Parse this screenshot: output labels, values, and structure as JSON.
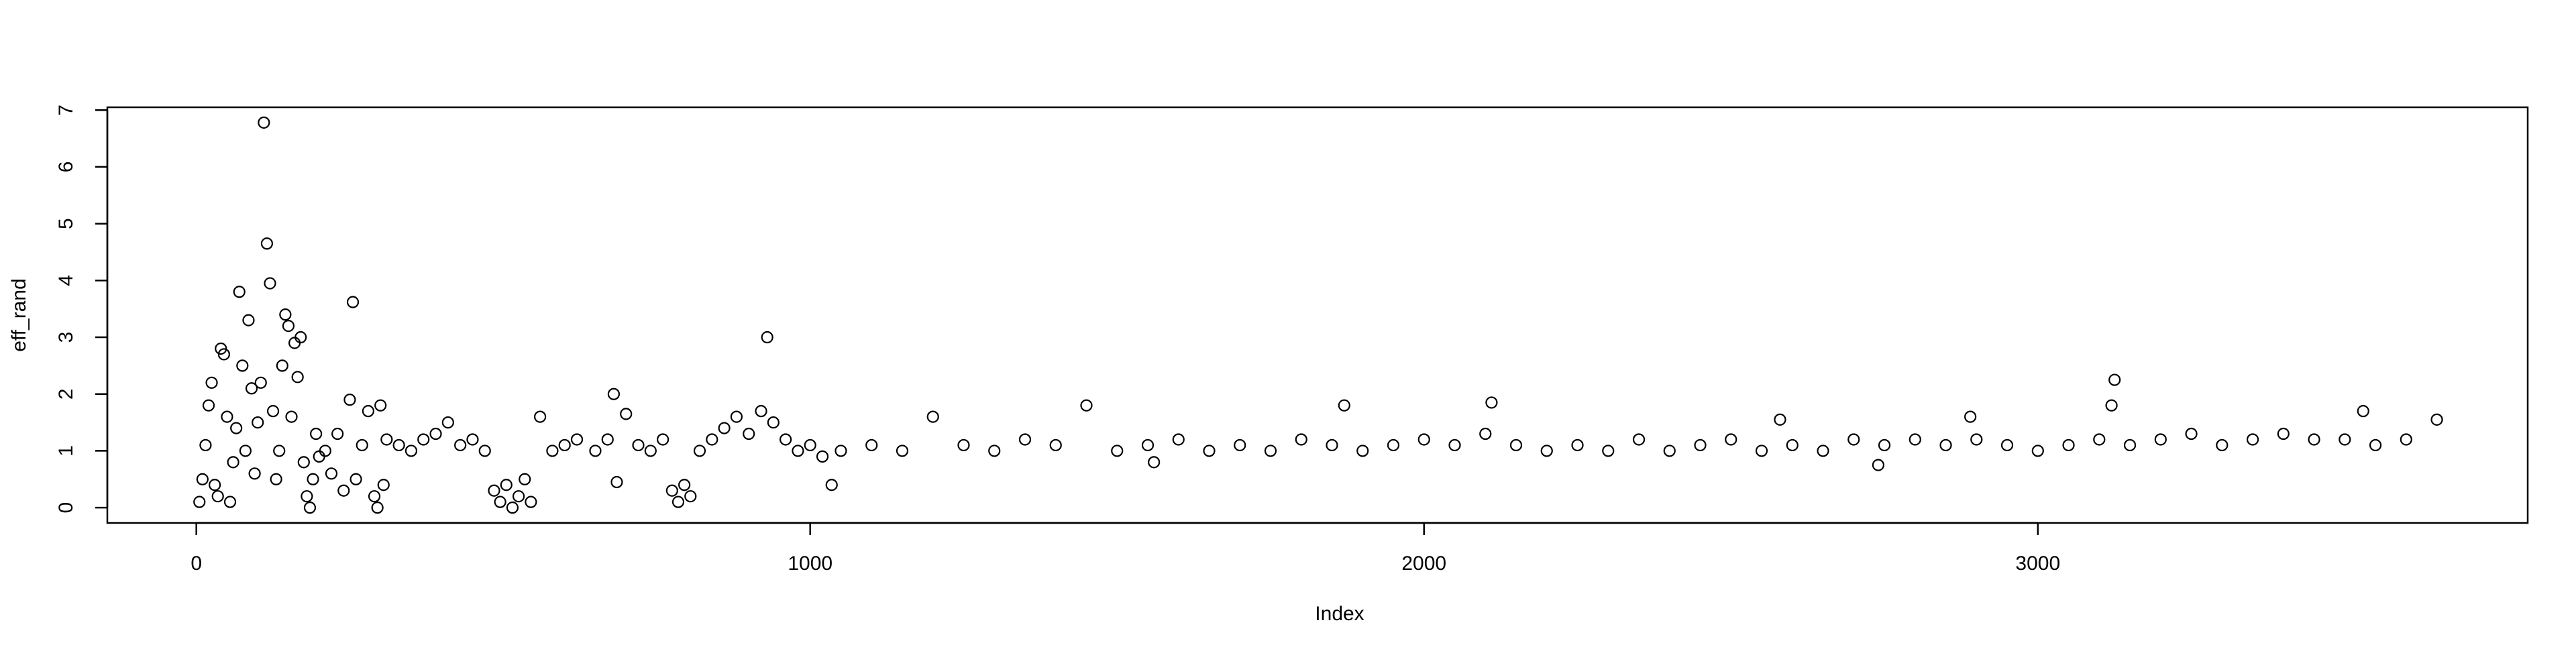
{
  "chart_data": {
    "type": "scatter",
    "x_label": "Index",
    "y_label": "eff_rand",
    "xlim": [
      -145,
      3798
    ],
    "ylim": [
      -0.27,
      7.05
    ],
    "xticks": [
      0,
      1000,
      2000,
      3000
    ],
    "yticks": [
      0,
      1,
      2,
      3,
      4,
      5,
      6,
      7
    ],
    "color": "#000000",
    "x": [
      5,
      10,
      15,
      20,
      25,
      30,
      35,
      40,
      45,
      50,
      55,
      60,
      65,
      70,
      75,
      80,
      85,
      90,
      95,
      100,
      105,
      110,
      115,
      120,
      125,
      130,
      135,
      140,
      145,
      150,
      155,
      160,
      165,
      170,
      175,
      180,
      185,
      190,
      195,
      200,
      210,
      220,
      230,
      240,
      250,
      255,
      260,
      270,
      280,
      290,
      295,
      300,
      305,
      310,
      330,
      350,
      370,
      390,
      410,
      430,
      450,
      470,
      485,
      495,
      505,
      515,
      525,
      535,
      545,
      560,
      580,
      600,
      620,
      650,
      670,
      680,
      685,
      700,
      720,
      740,
      760,
      775,
      785,
      795,
      805,
      820,
      840,
      860,
      880,
      900,
      920,
      930,
      940,
      960,
      980,
      1000,
      1020,
      1035,
      1050,
      1100,
      1150,
      1200,
      1250,
      1300,
      1350,
      1400,
      1450,
      1500,
      1550,
      1560,
      1600,
      1650,
      1700,
      1750,
      1800,
      1850,
      1870,
      1900,
      1950,
      2000,
      2050,
      2100,
      2110,
      2150,
      2200,
      2250,
      2300,
      2350,
      2400,
      2450,
      2500,
      2550,
      2580,
      2600,
      2650,
      2700,
      2740,
      2750,
      2800,
      2850,
      2890,
      2900,
      2950,
      3000,
      3050,
      3100,
      3120,
      3125,
      3150,
      3200,
      3250,
      3300,
      3350,
      3400,
      3450,
      3500,
      3530,
      3550,
      3600,
      3650
    ],
    "values": [
      0.1,
      0.5,
      1.1,
      1.8,
      2.2,
      0.4,
      0.2,
      2.8,
      2.7,
      1.6,
      0.1,
      0.8,
      1.4,
      3.8,
      2.5,
      1.0,
      3.3,
      2.1,
      0.6,
      1.5,
      2.2,
      6.78,
      4.65,
      3.95,
      1.7,
      0.5,
      1.0,
      2.5,
      3.4,
      3.2,
      1.6,
      2.9,
      2.3,
      3.0,
      0.8,
      0.2,
      0.0,
      0.5,
      1.3,
      0.9,
      1.0,
      0.6,
      1.3,
      0.3,
      1.9,
      3.62,
      0.5,
      1.1,
      1.7,
      0.2,
      0.0,
      1.8,
      0.4,
      1.2,
      1.1,
      1.0,
      1.2,
      1.3,
      1.5,
      1.1,
      1.2,
      1.0,
      0.3,
      0.1,
      0.4,
      0.0,
      0.2,
      0.5,
      0.1,
      1.6,
      1.0,
      1.1,
      1.2,
      1.0,
      1.2,
      2.0,
      0.45,
      1.65,
      1.1,
      1.0,
      1.2,
      0.3,
      0.1,
      0.4,
      0.2,
      1.0,
      1.2,
      1.4,
      1.6,
      1.3,
      1.7,
      3.0,
      1.5,
      1.2,
      1.0,
      1.1,
      0.9,
      0.4,
      1.0,
      1.1,
      1.0,
      1.6,
      1.1,
      1.0,
      1.2,
      1.1,
      1.8,
      1.0,
      1.1,
      0.8,
      1.2,
      1.0,
      1.1,
      1.0,
      1.2,
      1.1,
      1.8,
      1.0,
      1.1,
      1.2,
      1.1,
      1.3,
      1.85,
      1.1,
      1.0,
      1.1,
      1.0,
      1.2,
      1.0,
      1.1,
      1.2,
      1.0,
      1.55,
      1.1,
      1.0,
      1.2,
      0.75,
      1.1,
      1.2,
      1.1,
      1.6,
      1.2,
      1.1,
      1.0,
      1.1,
      1.2,
      1.8,
      2.25,
      1.1,
      1.2,
      1.3,
      1.1,
      1.2,
      1.3,
      1.2,
      1.2,
      1.7,
      1.1,
      1.2,
      1.55
    ]
  }
}
